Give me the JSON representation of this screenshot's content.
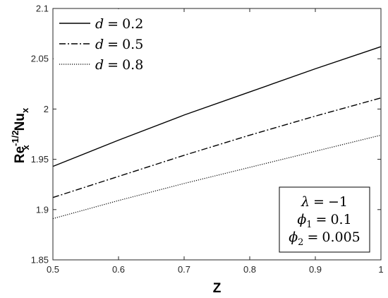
{
  "chart_data": {
    "type": "line",
    "xlabel": "Z",
    "ylabel": {
      "base1": "Re",
      "sup1": "-1/2",
      "sub1": "x",
      "base2": "Nu",
      "sub2": "x"
    },
    "xlim": [
      0.5,
      1.0
    ],
    "ylim": [
      1.85,
      2.1
    ],
    "xticks": [
      "0.5",
      "0.6",
      "0.7",
      "0.8",
      "0.9",
      "1"
    ],
    "yticks": [
      "1.85",
      "1.9",
      "1.95",
      "2",
      "2.05",
      "2.1"
    ],
    "grid": false,
    "legend_position": "top-left",
    "x": [
      0.5,
      0.6,
      0.7,
      0.8,
      0.9,
      1.0
    ],
    "series": [
      {
        "name": "d = 0.2",
        "var": "d",
        "op": "=",
        "value": "0.2",
        "style": "solid",
        "values": [
          1.943,
          1.969,
          1.994,
          2.017,
          2.04,
          2.062
        ]
      },
      {
        "name": "d = 0.5",
        "var": "d",
        "op": "=",
        "value": "0.5",
        "style": "dashdot",
        "values": [
          1.912,
          1.933,
          1.954,
          1.974,
          1.993,
          2.011
        ]
      },
      {
        "name": "d = 0.8",
        "var": "d",
        "op": "=",
        "value": "0.8",
        "style": "dotted",
        "values": [
          1.891,
          1.909,
          1.926,
          1.942,
          1.958,
          1.974
        ]
      }
    ],
    "annotation": {
      "position": "bottom-right",
      "lines": [
        {
          "var": "λ",
          "sub": "",
          "op": "=",
          "value": "−1"
        },
        {
          "var": "ϕ",
          "sub": "1",
          "op": "=",
          "value": "0.1"
        },
        {
          "var": "ϕ",
          "sub": "2",
          "op": "=",
          "value": "0.005"
        }
      ]
    }
  }
}
